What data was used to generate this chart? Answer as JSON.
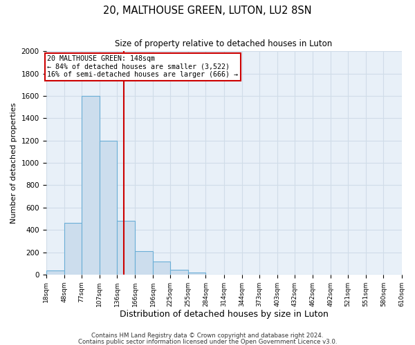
{
  "title": "20, MALTHOUSE GREEN, LUTON, LU2 8SN",
  "subtitle": "Size of property relative to detached houses in Luton",
  "xlabel": "Distribution of detached houses by size in Luton",
  "ylabel": "Number of detached properties",
  "bar_edges": [
    18,
    48,
    77,
    107,
    136,
    166,
    196,
    225,
    255,
    284,
    314,
    344,
    373,
    403,
    432,
    462,
    492,
    521,
    551,
    580,
    610
  ],
  "bar_heights": [
    35,
    460,
    1600,
    1200,
    480,
    210,
    115,
    45,
    20,
    0,
    0,
    0,
    0,
    0,
    0,
    0,
    0,
    0,
    0,
    0
  ],
  "bar_color": "#ccdded",
  "bar_edgecolor": "#6aaed6",
  "tick_labels": [
    "18sqm",
    "48sqm",
    "77sqm",
    "107sqm",
    "136sqm",
    "166sqm",
    "196sqm",
    "225sqm",
    "255sqm",
    "284sqm",
    "314sqm",
    "344sqm",
    "373sqm",
    "403sqm",
    "432sqm",
    "462sqm",
    "492sqm",
    "521sqm",
    "551sqm",
    "580sqm",
    "610sqm"
  ],
  "ylim": [
    0,
    2000
  ],
  "yticks": [
    0,
    200,
    400,
    600,
    800,
    1000,
    1200,
    1400,
    1600,
    1800,
    2000
  ],
  "vline_x": 148,
  "vline_color": "#cc0000",
  "annotation_title": "20 MALTHOUSE GREEN: 148sqm",
  "annotation_line1": "← 84% of detached houses are smaller (3,522)",
  "annotation_line2": "16% of semi-detached houses are larger (666) →",
  "annotation_box_edgecolor": "#cc0000",
  "annotation_box_facecolor": "#ffffff",
  "grid_color": "#d0dce8",
  "bg_color": "#ffffff",
  "ax_bg_color": "#e8f0f8",
  "footer1": "Contains HM Land Registry data © Crown copyright and database right 2024.",
  "footer2": "Contains public sector information licensed under the Open Government Licence v3.0."
}
